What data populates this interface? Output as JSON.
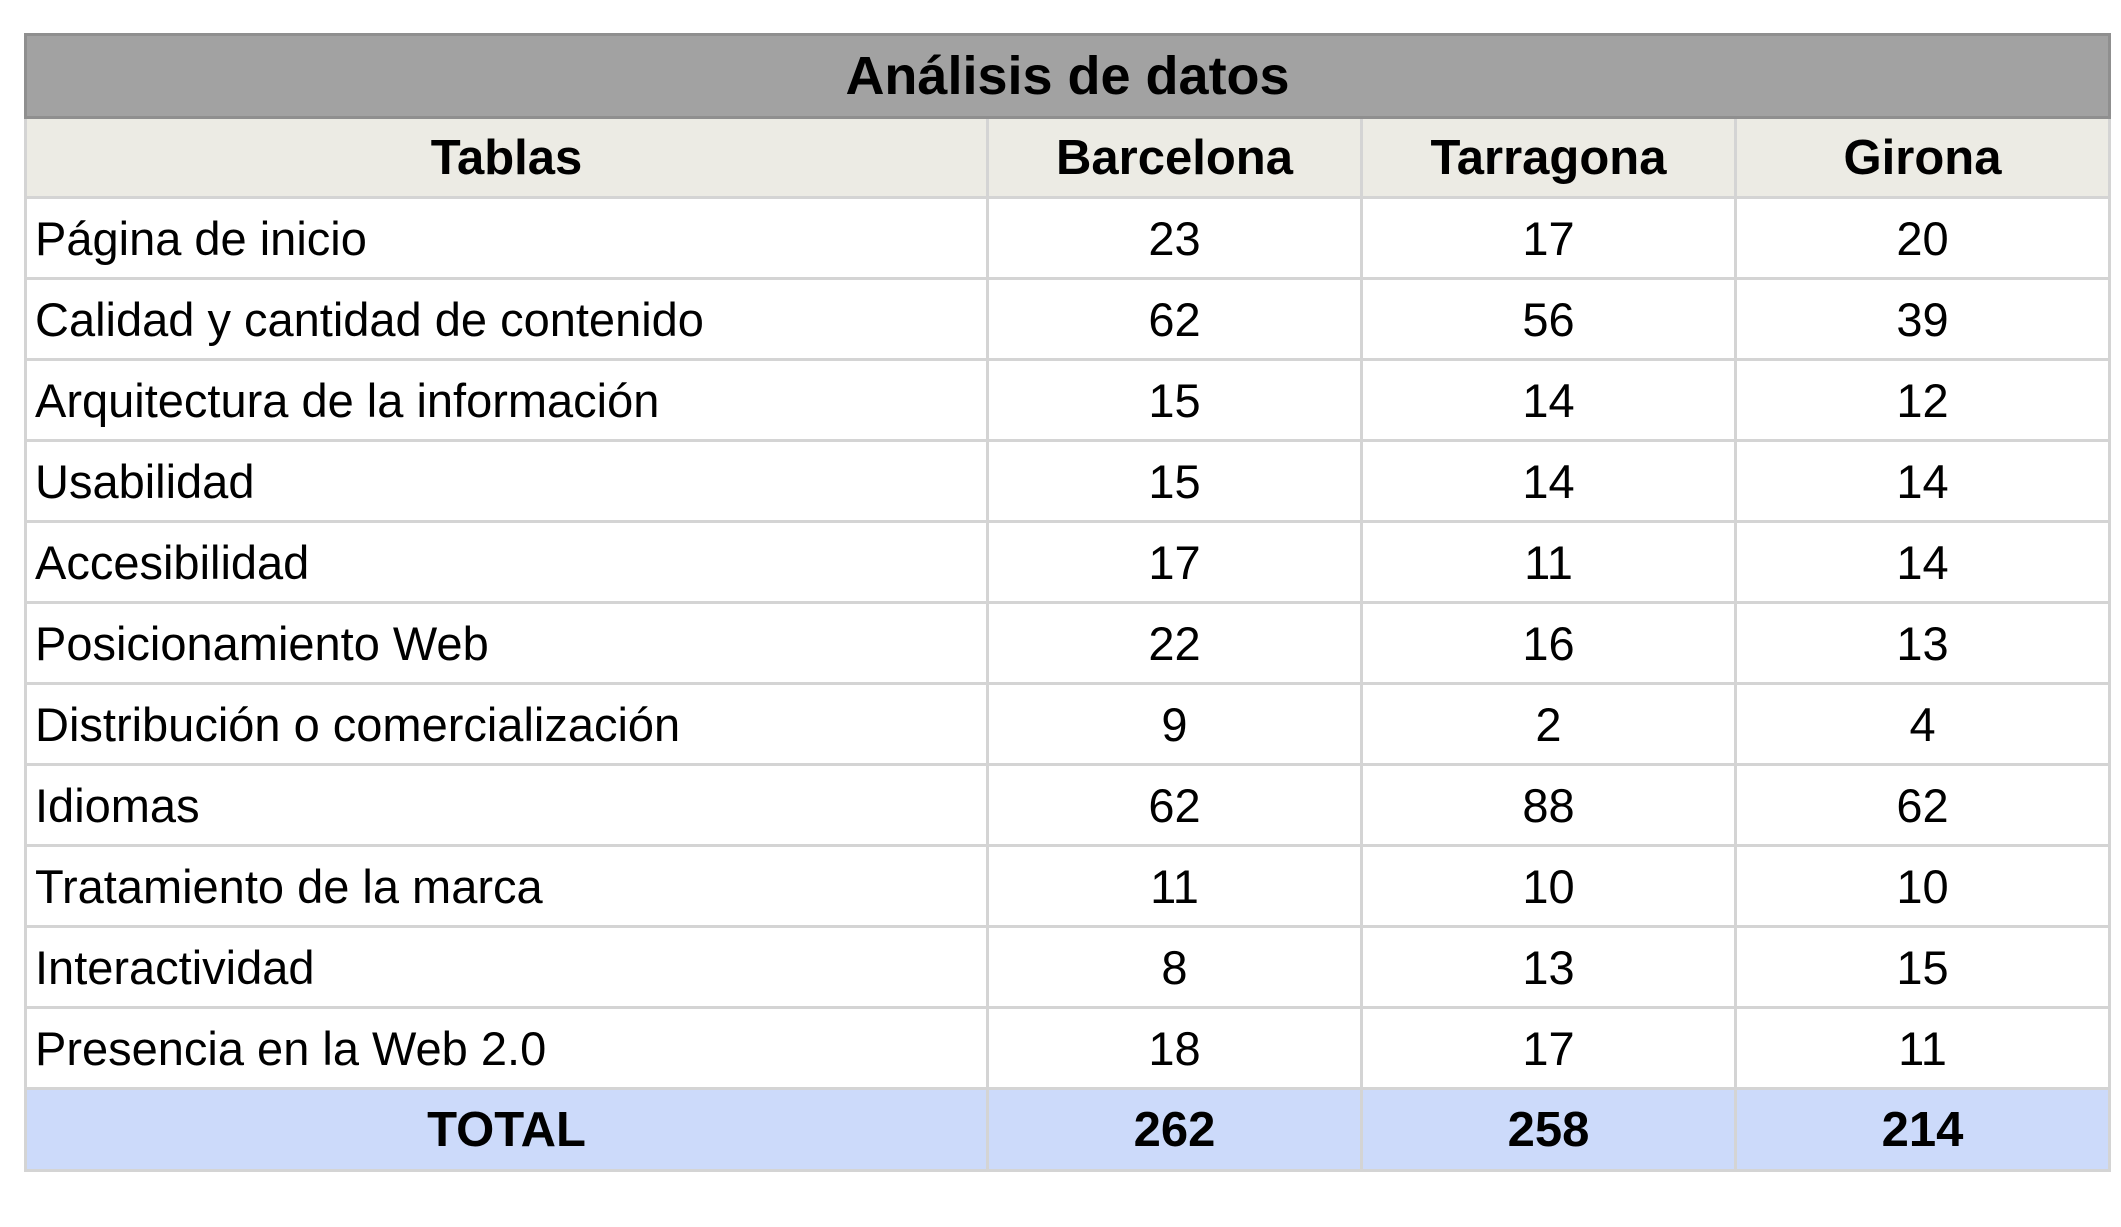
{
  "chart_data": {
    "type": "table",
    "title": "Análisis de datos",
    "columns": [
      "Tablas",
      "Barcelona",
      "Tarragona",
      "Girona"
    ],
    "rows": [
      {
        "label": "Página de inicio",
        "values": [
          "23",
          "17",
          "20"
        ]
      },
      {
        "label": "Calidad y cantidad de contenido",
        "values": [
          "62",
          "56",
          "39"
        ]
      },
      {
        "label": "Arquitectura de la información",
        "values": [
          "15",
          "14",
          "12"
        ]
      },
      {
        "label": "Usabilidad",
        "values": [
          "15",
          "14",
          "14"
        ]
      },
      {
        "label": "Accesibilidad",
        "values": [
          "17",
          "11",
          "14"
        ]
      },
      {
        "label": "Posicionamiento Web",
        "values": [
          "22",
          "16",
          "13"
        ]
      },
      {
        "label": "Distribución o comercialización",
        "values": [
          "9",
          "2",
          "4"
        ]
      },
      {
        "label": "Idiomas",
        "values": [
          "62",
          "88",
          "62"
        ]
      },
      {
        "label": "Tratamiento de la marca",
        "values": [
          "11",
          "10",
          "10"
        ]
      },
      {
        "label": "Interactividad",
        "values": [
          "8",
          "13",
          "15"
        ]
      },
      {
        "label": "Presencia en la Web 2.0",
        "values": [
          "18",
          "17",
          "11"
        ]
      }
    ],
    "total": {
      "label": "TOTAL",
      "values": [
        "262",
        "258",
        "214"
      ]
    },
    "colors": {
      "title_bg": "#a2a2a2",
      "header_bg": "#ecebe4",
      "total_bg": "#ccdafa",
      "grid": "#d4d4d4"
    }
  }
}
